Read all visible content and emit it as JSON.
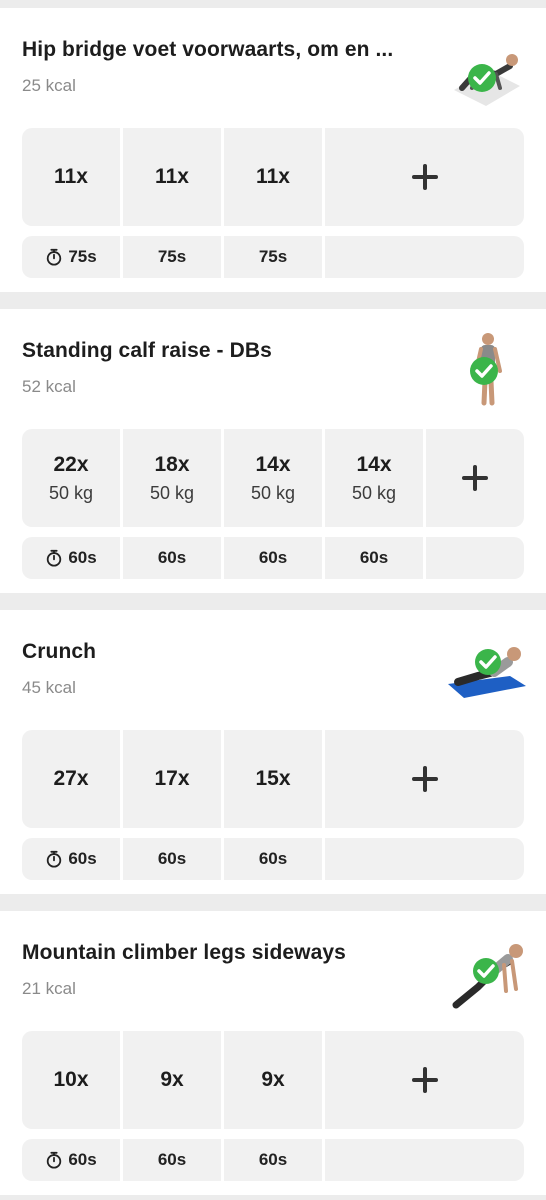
{
  "exercises": [
    {
      "title": "Hip bridge voet voorwaarts, om en ...",
      "kcal": "25 kcal",
      "sets": [
        {
          "reps": "11x",
          "weight": ""
        },
        {
          "reps": "11x",
          "weight": ""
        },
        {
          "reps": "11x",
          "weight": ""
        }
      ],
      "rests": [
        "75s",
        "75s",
        "75s"
      ],
      "thumb_icon": "hip-bridge-figure",
      "completed": true
    },
    {
      "title": "Standing calf raise - DBs",
      "kcal": "52 kcal",
      "sets": [
        {
          "reps": "22x",
          "weight": "50 kg"
        },
        {
          "reps": "18x",
          "weight": "50 kg"
        },
        {
          "reps": "14x",
          "weight": "50 kg"
        },
        {
          "reps": "14x",
          "weight": "50 kg"
        }
      ],
      "rests": [
        "60s",
        "60s",
        "60s",
        "60s"
      ],
      "thumb_icon": "standing-figure",
      "completed": true
    },
    {
      "title": "Crunch",
      "kcal": "45 kcal",
      "sets": [
        {
          "reps": "27x",
          "weight": ""
        },
        {
          "reps": "17x",
          "weight": ""
        },
        {
          "reps": "15x",
          "weight": ""
        }
      ],
      "rests": [
        "60s",
        "60s",
        "60s"
      ],
      "thumb_icon": "crunch-figure",
      "completed": true
    },
    {
      "title": "Mountain climber legs sideways",
      "kcal": "21 kcal",
      "sets": [
        {
          "reps": "10x",
          "weight": ""
        },
        {
          "reps": "9x",
          "weight": ""
        },
        {
          "reps": "9x",
          "weight": ""
        }
      ],
      "rests": [
        "60s",
        "60s",
        "60s"
      ],
      "thumb_icon": "mountain-climber-figure",
      "completed": true
    }
  ],
  "colors": {
    "check": "#3bb54a",
    "cell": "#f1f1f1",
    "divider": "#ececec",
    "kcal": "#8a8a8a"
  }
}
